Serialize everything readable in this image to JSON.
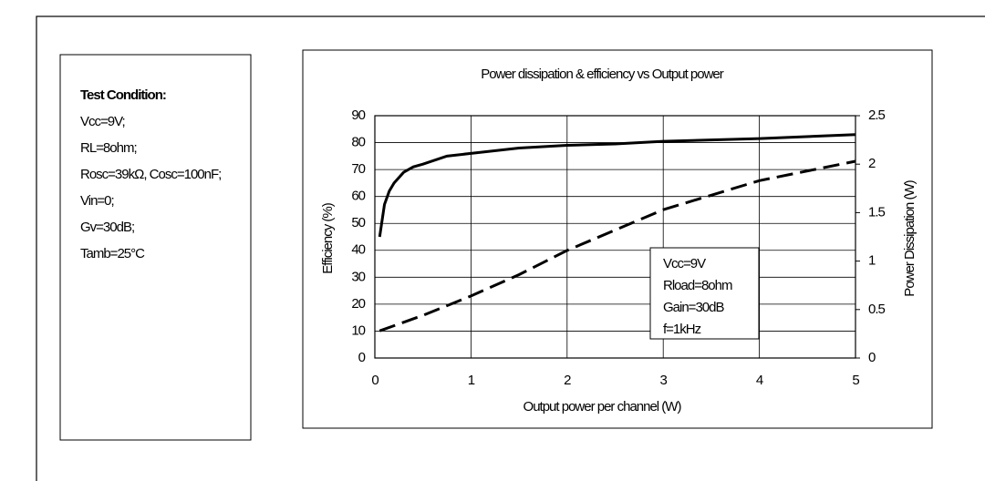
{
  "conditions": {
    "title": "Test Condition:",
    "lines": [
      "Vcc=9V;",
      "RL=8ohm;",
      "Rosc=39kΩ, Cosc=100nF;",
      "Vin=0;",
      "Gv=30dB;",
      "Tamb=25°C"
    ]
  },
  "chart_data": {
    "type": "line",
    "title": "Power dissipation & efficiency vs Output power",
    "x_label": "Output power per channel (W)",
    "y_label": "Efficiency (%)",
    "y2_label": "Power Dissipation (W)",
    "xlim": [
      0,
      5
    ],
    "xticks": [
      0,
      1,
      2,
      3,
      4,
      5
    ],
    "ylim": [
      0,
      90
    ],
    "yticks": [
      0,
      10,
      20,
      30,
      40,
      50,
      60,
      70,
      80,
      90
    ],
    "y2lim": [
      0,
      2.5
    ],
    "y2ticks": [
      0,
      0.5,
      1,
      1.5,
      2,
      2.5
    ],
    "grid": true,
    "series": [
      {
        "color": "#000000",
        "dash": false,
        "x": [
          0.05,
          0.1,
          0.15,
          0.2,
          0.3,
          0.4,
          0.5,
          0.75,
          1,
          1.5,
          2,
          2.5,
          3,
          4,
          5
        ],
        "values": [
          45,
          57,
          62,
          65,
          69,
          71,
          72,
          75,
          76,
          78,
          79,
          79.5,
          80.5,
          81.5,
          83
        ]
      },
      {
        "color": "#000000",
        "dash": true,
        "axis": "y2",
        "x": [
          0.05,
          0.5,
          1,
          1.5,
          2,
          3,
          4,
          5
        ],
        "values": [
          0.28,
          0.44,
          0.64,
          0.86,
          1.11,
          1.53,
          1.83,
          2.03
        ]
      }
    ],
    "legend_lines": [
      "Vcc=9V",
      "Rload=8ohm",
      "Gain=30dB",
      "f=1kHz"
    ]
  }
}
